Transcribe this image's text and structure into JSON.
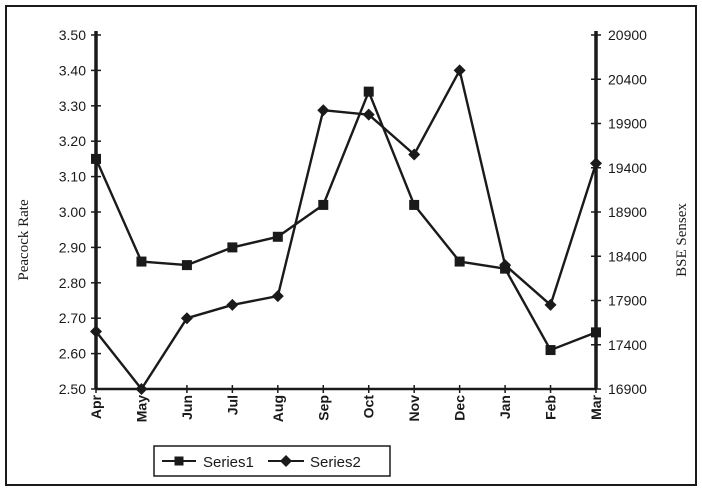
{
  "chart_data": {
    "type": "line",
    "categories": [
      "Apr",
      "May",
      "Jun",
      "Jul",
      "Aug",
      "Sep",
      "Oct",
      "Nov",
      "Dec",
      "Jan",
      "Feb",
      "Mar"
    ],
    "ylabel": "Peacock Rate",
    "y2label": "BSE Sensex",
    "ylim": [
      2.5,
      3.5
    ],
    "y2lim": [
      16900,
      20900
    ],
    "yticks": [
      "2.50",
      "2.60",
      "2.70",
      "2.80",
      "2.90",
      "3.00",
      "3.10",
      "3.20",
      "3.30",
      "3.40",
      "3.50"
    ],
    "y2ticks": [
      "16900",
      "17400",
      "17900",
      "18400",
      "18900",
      "19400",
      "19900",
      "20400",
      "20900"
    ],
    "grid": false,
    "legend": "bottom",
    "series": [
      {
        "name": "Series1",
        "marker": "square",
        "axis": "left",
        "values": [
          3.15,
          2.86,
          2.85,
          2.9,
          2.93,
          3.02,
          3.34,
          3.02,
          2.86,
          2.84,
          2.61,
          2.66
        ]
      },
      {
        "name": "Series2",
        "marker": "diamond",
        "axis": "right",
        "values": [
          17550,
          16900,
          17700,
          17850,
          17950,
          20050,
          20000,
          19550,
          20500,
          18300,
          17850,
          19450
        ]
      }
    ],
    "colors": {
      "line": "#1a1a1a",
      "frame": "#1a1a1a",
      "background": "#ffffff"
    }
  }
}
